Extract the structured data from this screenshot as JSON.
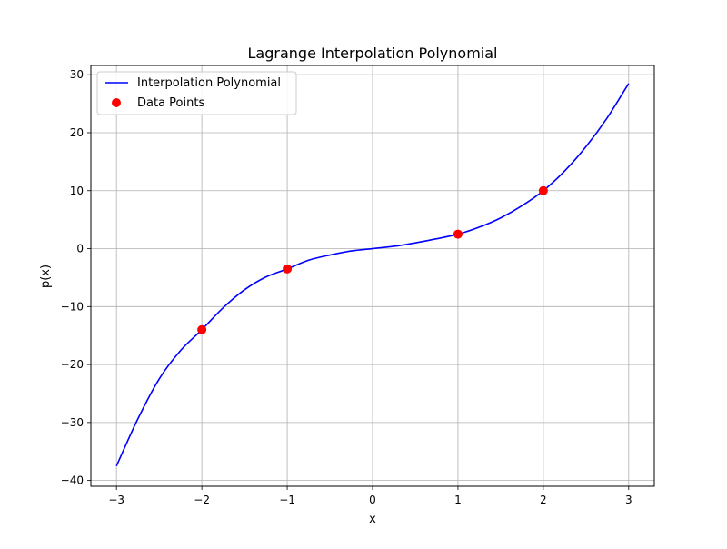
{
  "chart_data": {
    "type": "line",
    "title": "Lagrange Interpolation Polynomial",
    "xlabel": "x",
    "ylabel": "p(x)",
    "xlim": [
      -3.3,
      3.3
    ],
    "ylim": [
      -41.0,
      31.6
    ],
    "x_ticks": [
      -3,
      -2,
      -1,
      0,
      1,
      2,
      3
    ],
    "x_tick_labels": [
      "−3",
      "−2",
      "−1",
      "0",
      "1",
      "2",
      "3"
    ],
    "y_ticks": [
      -40,
      -30,
      -20,
      -10,
      0,
      10,
      20,
      30
    ],
    "y_tick_labels": [
      "−40",
      "−30",
      "−20",
      "−10",
      "0",
      "10",
      "20",
      "30"
    ],
    "grid": true,
    "legend_position": "top-left",
    "series": [
      {
        "name": "Interpolation Polynomial",
        "kind": "line",
        "color": "#0000ff",
        "x": [
          -3.0,
          -2.75,
          -2.5,
          -2.25,
          -2.0,
          -1.75,
          -1.5,
          -1.25,
          -1.0,
          -0.75,
          -0.5,
          -0.25,
          0.0,
          0.25,
          0.5,
          0.75,
          1.0,
          1.25,
          1.5,
          1.75,
          2.0,
          2.25,
          2.5,
          2.75,
          3.0
        ],
        "y": [
          -37.5,
          -29.4,
          -22.5,
          -17.6,
          -14.0,
          -10.2,
          -7.1,
          -4.9,
          -3.5,
          -2.0,
          -1.1,
          -0.4,
          0.0,
          0.4,
          1.0,
          1.7,
          2.5,
          3.7,
          5.3,
          7.4,
          10.0,
          13.4,
          17.6,
          22.6,
          28.5
        ]
      },
      {
        "name": "Data Points",
        "kind": "scatter",
        "color": "#ff0000",
        "x": [
          -2,
          -1,
          1,
          2
        ],
        "y": [
          -14.0,
          -3.5,
          2.5,
          10.0
        ]
      }
    ]
  }
}
